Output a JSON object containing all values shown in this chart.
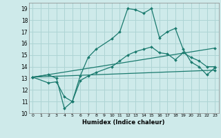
{
  "xlabel": "Humidex (Indice chaleur)",
  "ylabel": "",
  "xlim": [
    -0.5,
    23.5
  ],
  "ylim": [
    10,
    19.5
  ],
  "yticks": [
    10,
    11,
    12,
    13,
    14,
    15,
    16,
    17,
    18,
    19
  ],
  "xticks": [
    0,
    1,
    2,
    3,
    4,
    5,
    6,
    7,
    8,
    9,
    10,
    11,
    12,
    13,
    14,
    15,
    16,
    17,
    18,
    19,
    20,
    21,
    22,
    23
  ],
  "bg_color": "#ceeaea",
  "grid_color": "#aed4d4",
  "line_color": "#1a7a6e",
  "lines": [
    {
      "x": [
        0,
        2,
        3,
        4,
        5,
        6,
        7,
        8,
        10,
        11,
        12,
        13,
        14,
        15,
        16,
        17,
        18,
        19,
        20,
        21,
        22,
        23
      ],
      "y": [
        13.1,
        13.3,
        13.0,
        10.4,
        11.0,
        13.2,
        14.8,
        15.5,
        16.4,
        17.0,
        19.0,
        18.9,
        18.6,
        19.0,
        16.5,
        17.0,
        17.3,
        15.5,
        14.4,
        14.0,
        13.3,
        13.9
      ]
    },
    {
      "x": [
        0,
        2,
        3,
        4,
        5,
        6,
        7,
        8,
        10,
        11,
        12,
        13,
        14,
        15,
        16,
        17,
        18,
        19,
        20,
        21,
        22,
        23
      ],
      "y": [
        13.1,
        12.6,
        12.7,
        11.4,
        11.0,
        12.8,
        13.2,
        13.5,
        14.0,
        14.5,
        15.0,
        15.3,
        15.5,
        15.7,
        15.2,
        15.1,
        14.6,
        15.2,
        14.8,
        14.5,
        14.0,
        14.0
      ]
    },
    {
      "x": [
        0,
        23
      ],
      "y": [
        13.1,
        15.6
      ]
    },
    {
      "x": [
        0,
        23
      ],
      "y": [
        13.1,
        13.7
      ]
    }
  ]
}
